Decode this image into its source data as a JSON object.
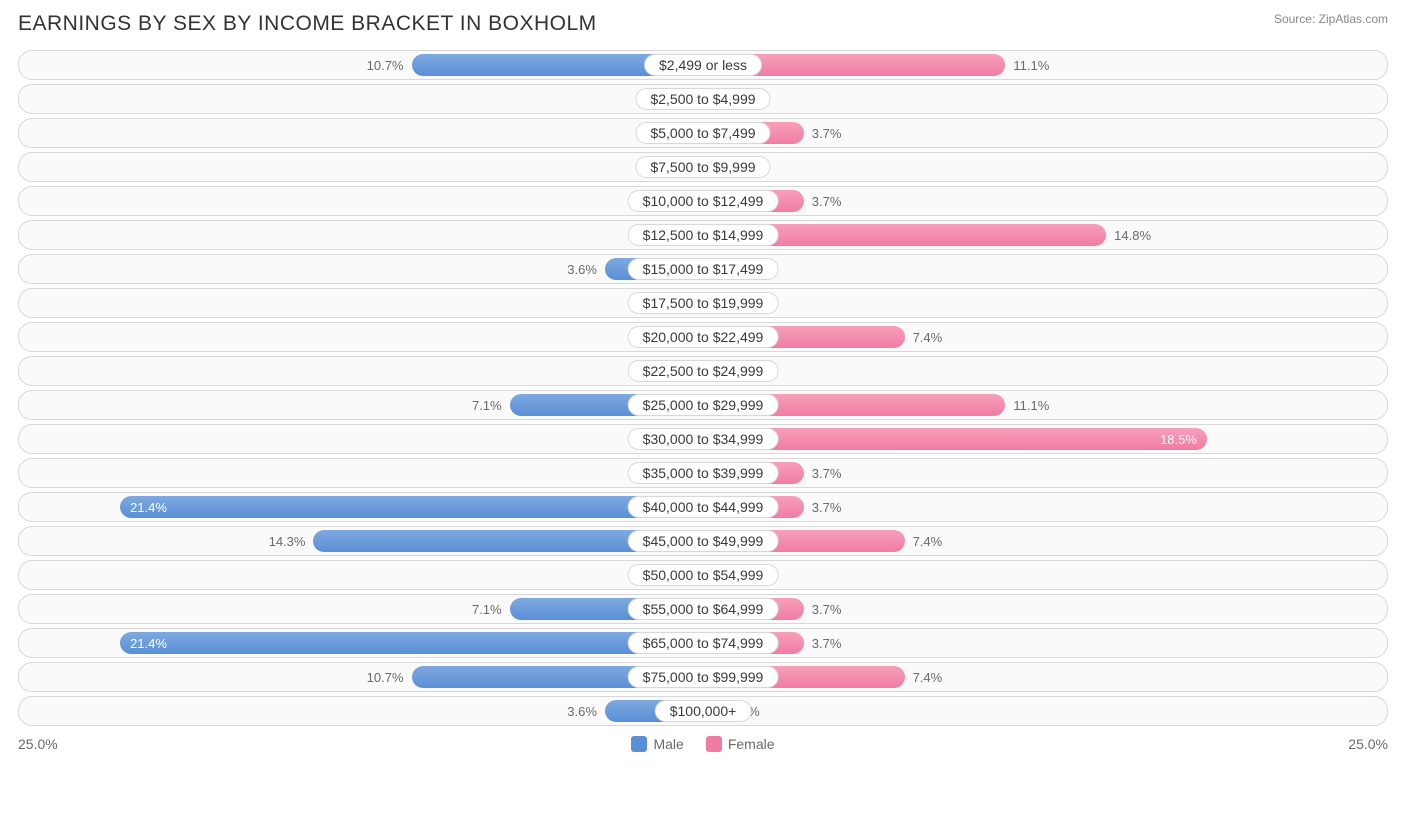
{
  "title": "EARNINGS BY SEX BY INCOME BRACKET IN BOXHOLM",
  "source": "Source: ZipAtlas.com",
  "axis_max_pct": 25.0,
  "axis_left_label": "25.0%",
  "axis_right_label": "25.0%",
  "min_bar_pct": 2.8,
  "legend": {
    "male": "Male",
    "female": "Female"
  },
  "colors": {
    "male_bar": "#5a8fd6",
    "female_bar": "#f07ba3",
    "row_border": "#d8d8d8",
    "row_bg": "#fafafa",
    "text": "#6a6a6a",
    "title": "#333333",
    "pill_bg": "#ffffff"
  },
  "rows": [
    {
      "category": "$2,499 or less",
      "male": 10.7,
      "female": 11.1
    },
    {
      "category": "$2,500 to $4,999",
      "male": 0.0,
      "female": 0.0
    },
    {
      "category": "$5,000 to $7,499",
      "male": 0.0,
      "female": 3.7
    },
    {
      "category": "$7,500 to $9,999",
      "male": 0.0,
      "female": 0.0
    },
    {
      "category": "$10,000 to $12,499",
      "male": 0.0,
      "female": 3.7
    },
    {
      "category": "$12,500 to $14,999",
      "male": 0.0,
      "female": 14.8
    },
    {
      "category": "$15,000 to $17,499",
      "male": 3.6,
      "female": 0.0
    },
    {
      "category": "$17,500 to $19,999",
      "male": 0.0,
      "female": 0.0
    },
    {
      "category": "$20,000 to $22,499",
      "male": 0.0,
      "female": 7.4
    },
    {
      "category": "$22,500 to $24,999",
      "male": 0.0,
      "female": 0.0
    },
    {
      "category": "$25,000 to $29,999",
      "male": 7.1,
      "female": 11.1
    },
    {
      "category": "$30,000 to $34,999",
      "male": 0.0,
      "female": 18.5
    },
    {
      "category": "$35,000 to $39,999",
      "male": 0.0,
      "female": 3.7
    },
    {
      "category": "$40,000 to $44,999",
      "male": 21.4,
      "female": 3.7
    },
    {
      "category": "$45,000 to $49,999",
      "male": 14.3,
      "female": 7.4
    },
    {
      "category": "$50,000 to $54,999",
      "male": 0.0,
      "female": 0.0
    },
    {
      "category": "$55,000 to $64,999",
      "male": 7.1,
      "female": 3.7
    },
    {
      "category": "$65,000 to $74,999",
      "male": 21.4,
      "female": 3.7
    },
    {
      "category": "$75,000 to $99,999",
      "male": 10.7,
      "female": 7.4
    },
    {
      "category": "$100,000+",
      "male": 3.6,
      "female": 0.0
    }
  ]
}
